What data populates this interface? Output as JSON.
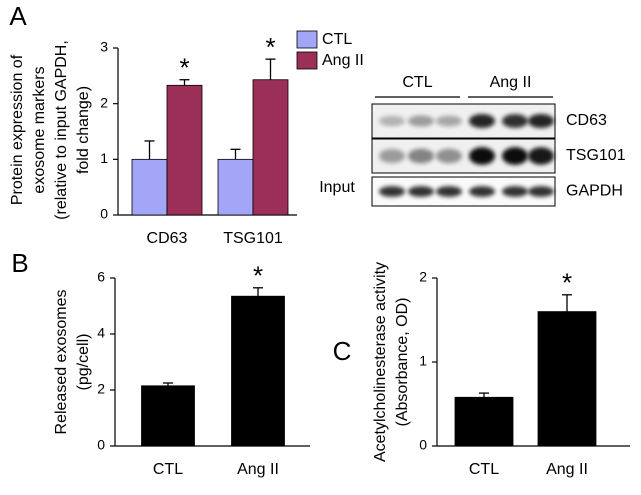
{
  "chart_data": [
    {
      "type": "bar",
      "panel": "A",
      "ylabel": [
        "Protein expression of",
        "exosome markers",
        "(relative to input GAPDH,",
        "fold change)"
      ],
      "categories": [
        "CD63",
        "TSG101"
      ],
      "series": [
        {
          "name": "CTL",
          "color": "#a3a6f7",
          "values": [
            1,
            1
          ],
          "errors": [
            0.33,
            0.18
          ]
        },
        {
          "name": "Ang II",
          "color": "#9c2f57",
          "values": [
            2.33,
            2.43
          ],
          "errors": [
            0.1,
            0.37
          ]
        }
      ],
      "ylim": [
        0,
        3
      ],
      "yticks": [
        0,
        1,
        2,
        3
      ],
      "annotations": [
        {
          "text": "*",
          "category": "CD63",
          "series": "Ang II"
        },
        {
          "text": "*",
          "category": "TSG101",
          "series": "Ang II"
        }
      ]
    },
    {
      "type": "bar",
      "panel": "B",
      "ylabel": [
        "Released exosomes",
        "(pg/cell)"
      ],
      "categories": [
        "CTL",
        "Ang II"
      ],
      "series": [
        {
          "color": "#000000",
          "values": [
            2.15,
            5.35
          ],
          "errors": [
            0.1,
            0.3
          ]
        }
      ],
      "ylim": [
        0,
        6
      ],
      "yticks": [
        0,
        2,
        4,
        6
      ],
      "annotations": [
        {
          "text": "*",
          "category": "Ang II"
        }
      ]
    },
    {
      "type": "bar",
      "panel": "C",
      "ylabel": [
        "Acetylcholinesterase activity",
        "(Absorbance, OD)"
      ],
      "categories": [
        "CTL",
        "Ang II"
      ],
      "series": [
        {
          "color": "#000000",
          "values": [
            0.58,
            1.6
          ],
          "errors": [
            0.05,
            0.2
          ]
        }
      ],
      "ylim": [
        0,
        2
      ],
      "yticks": [
        0,
        1,
        2
      ],
      "annotations": [
        {
          "text": "*",
          "category": "Ang II"
        }
      ]
    }
  ],
  "blot": {
    "groups": [
      "CTL",
      "Ang II"
    ],
    "rows": [
      "CD63",
      "TSG101",
      "GAPDH"
    ],
    "input_label": "Input"
  }
}
